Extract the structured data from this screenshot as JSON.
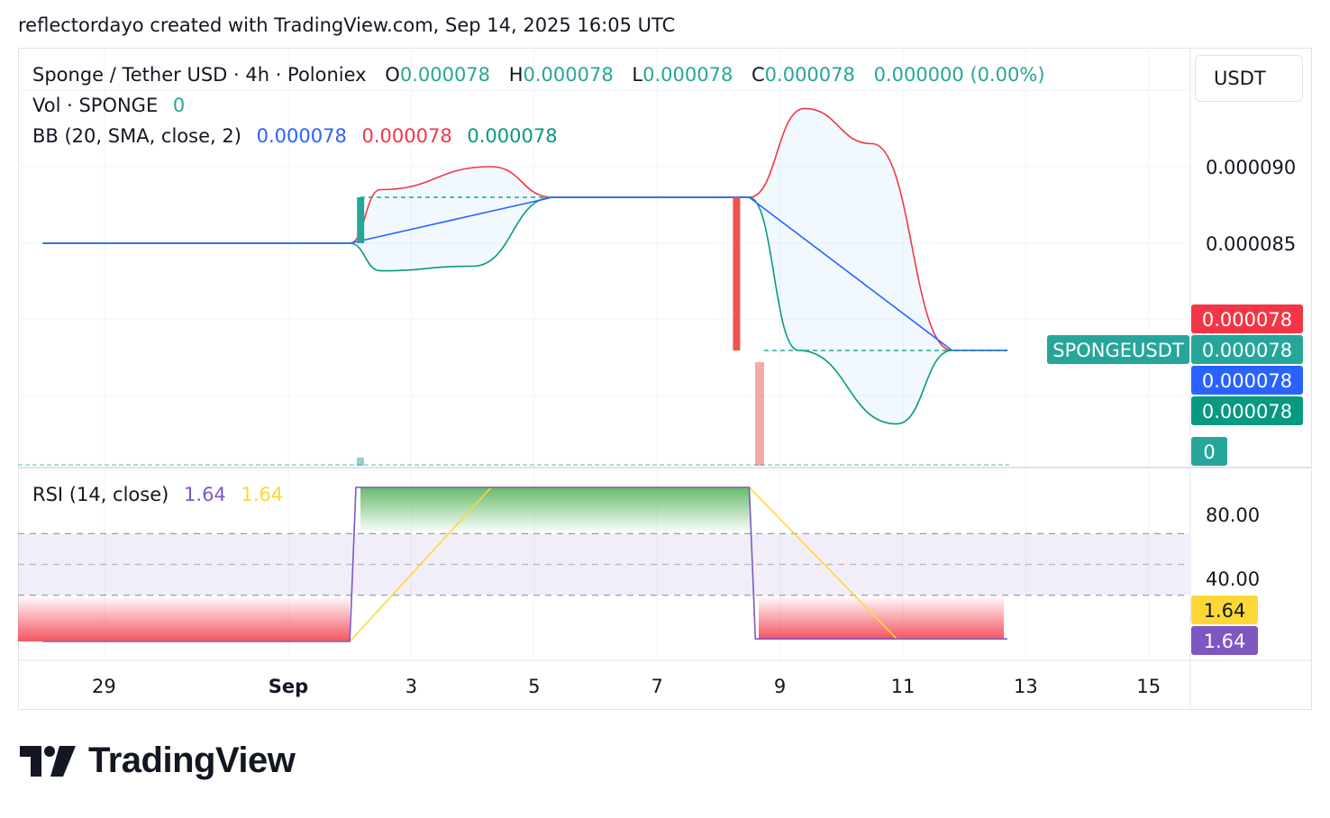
{
  "header": {
    "text": "reflectordayo created with TradingView.com, Sep 14, 2025 16:05 UTC"
  },
  "legend": {
    "symbol": "Sponge / Tether USD · 4h · Poloniex",
    "o_label": "O",
    "o_value": "0.000078",
    "h_label": "H",
    "h_value": "0.000078",
    "l_label": "L",
    "l_value": "0.000078",
    "c_label": "C",
    "c_value": "0.000078",
    "change": "0.000000 (0.00%)",
    "vol_label": "Vol · SPONGE",
    "vol_value": "0",
    "bb_label": "BB (20, SMA, close, 2)",
    "bb_basis": "0.000078",
    "bb_upper": "0.000078",
    "bb_lower": "0.000078",
    "rsi_label": "RSI (14, close)",
    "rsi_value": "1.64",
    "rsi_ma_value": "1.64"
  },
  "price_axis": {
    "unit": "USDT",
    "ticks": [
      "0.000090",
      "0.000085"
    ],
    "rsi_ticks": [
      "80.00",
      "40.00"
    ]
  },
  "badges": {
    "upper": "0.000078",
    "symbol": "SPONGEUSDT",
    "close": "0.000078",
    "basis": "0.000078",
    "lower": "0.000078",
    "volume": "0",
    "rsi_ma": "1.64",
    "rsi": "1.64"
  },
  "time_axis": {
    "ticks": [
      "29",
      "Sep",
      "3",
      "5",
      "7",
      "9",
      "11",
      "13",
      "15"
    ]
  },
  "colors": {
    "up": "#26a69a",
    "down": "#ef5350",
    "bb_basis": "#2962ff",
    "bb_upper": "#f23645",
    "bb_lower": "#089981",
    "rsi": "#7e57c2",
    "rsi_ma": "#fdd835",
    "grid": "#f0f3fa"
  },
  "logo": {
    "text": "TradingView"
  },
  "chart_data": [
    {
      "type": "candlestick",
      "title": "Sponge / Tether USD · 4h · Poloniex",
      "x_ticks": [
        "29",
        "Sep",
        "3",
        "5",
        "7",
        "9",
        "11",
        "13",
        "15"
      ],
      "ylim": [
        7.3e-05,
        9.5e-05
      ],
      "y_ticks": [
        9e-05,
        8.5e-05
      ],
      "candles": [
        {
          "date": "Sep 2",
          "open": 8.5e-05,
          "close": 8.8e-05,
          "direction": "up"
        },
        {
          "date": "Sep 8",
          "open": 8.8e-05,
          "close": 7.8e-05,
          "direction": "down"
        }
      ],
      "series": [
        {
          "name": "BB basis",
          "points": [
            [
              "Aug 28",
              8.5e-05
            ],
            [
              "Sep 2",
              8.5e-05
            ],
            [
              "Sep 5.3",
              8.8e-05
            ],
            [
              "Sep 8.5",
              8.8e-05
            ],
            [
              "Sep 11.8",
              7.8e-05
            ],
            [
              "Sep 12.7",
              7.8e-05
            ]
          ]
        },
        {
          "name": "BB upper",
          "points": [
            [
              "Aug 28",
              8.5e-05
            ],
            [
              "Sep 2",
              8.5e-05
            ],
            [
              "Sep 2.5",
              8.85e-05
            ],
            [
              "Sep 4.3",
              9e-05
            ],
            [
              "Sep 5.3",
              8.8e-05
            ],
            [
              "Sep 8.5",
              8.8e-05
            ],
            [
              "Sep 9.4",
              9.38e-05
            ],
            [
              "Sep 10.5",
              9.15e-05
            ],
            [
              "Sep 11.8",
              7.8e-05
            ],
            [
              "Sep 12.7",
              7.8e-05
            ]
          ]
        },
        {
          "name": "BB lower",
          "points": [
            [
              "Aug 28",
              8.5e-05
            ],
            [
              "Sep 2",
              8.5e-05
            ],
            [
              "Sep 2.5",
              8.32e-05
            ],
            [
              "Sep 4",
              8.35e-05
            ],
            [
              "Sep 5.3",
              8.8e-05
            ],
            [
              "Sep 8.5",
              8.8e-05
            ],
            [
              "Sep 9.3",
              7.8e-05
            ],
            [
              "Sep 10.9",
              7.32e-05
            ],
            [
              "Sep 11.8",
              7.8e-05
            ],
            [
              "Sep 12.7",
              7.8e-05
            ]
          ]
        }
      ],
      "last_price": 7.8e-05
    },
    {
      "type": "line",
      "title": "RSI (14, close)",
      "ylim": [
        0,
        100
      ],
      "y_ticks": [
        80,
        40
      ],
      "bands": [
        30,
        50,
        70
      ],
      "series": [
        {
          "name": "RSI",
          "points": [
            [
              "Aug 28",
              0
            ],
            [
              "Sep 2",
              0
            ],
            [
              "Sep 2.1",
              100
            ],
            [
              "Sep 8.5",
              100
            ],
            [
              "Sep 8.6",
              1.64
            ],
            [
              "Sep 12.7",
              1.64
            ]
          ]
        },
        {
          "name": "RSI MA",
          "points": [
            [
              "Aug 28",
              0
            ],
            [
              "Sep 2",
              0
            ],
            [
              "Sep 4.3",
              100
            ],
            [
              "Sep 8.5",
              100
            ],
            [
              "Sep 10.9",
              1.64
            ],
            [
              "Sep 12.7",
              1.64
            ]
          ]
        }
      ]
    }
  ]
}
